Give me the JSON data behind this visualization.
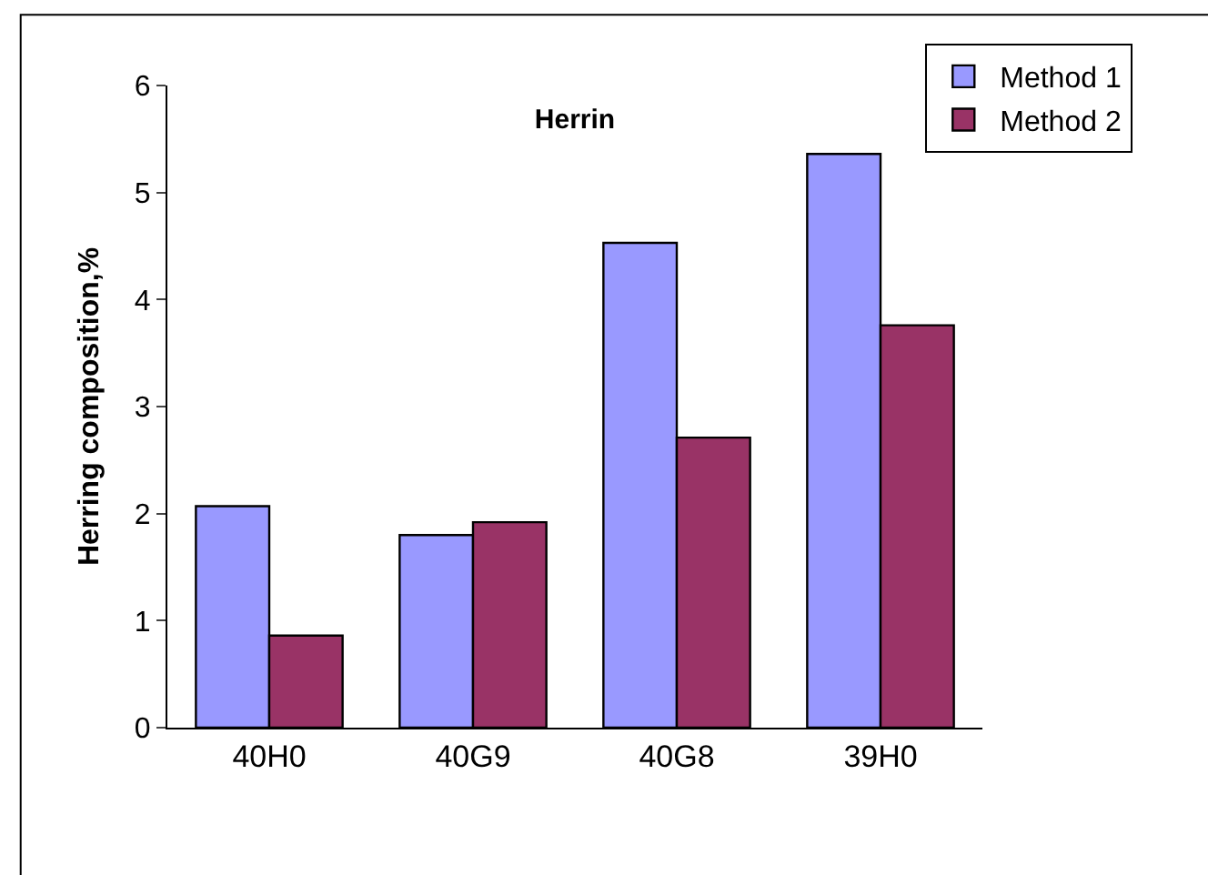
{
  "chart_data": {
    "type": "bar",
    "title": "Herrin",
    "ylabel": "Herring composition,%",
    "categories": [
      "40H0",
      "40G9",
      "40G8",
      "39H0"
    ],
    "series": [
      {
        "name": "Method 1",
        "color": "#9999ff",
        "values": [
          2.07,
          1.8,
          4.53,
          5.36
        ]
      },
      {
        "name": "Method 2",
        "color": "#993366",
        "values": [
          0.86,
          1.92,
          2.71,
          3.76
        ]
      }
    ],
    "ylim": [
      0,
      6
    ],
    "yticks": [
      0,
      1,
      2,
      3,
      4,
      5,
      6
    ],
    "legend": "top right"
  }
}
